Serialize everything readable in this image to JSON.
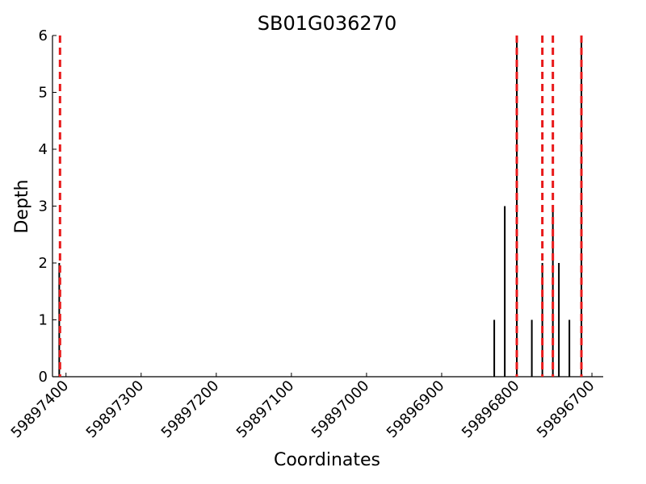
{
  "chart_data": {
    "type": "bar",
    "title": "SB01G036270",
    "xlabel": "Coordinates",
    "ylabel": "Depth",
    "x_axis_reversed": true,
    "xlim": [
      59897418,
      59896685
    ],
    "ylim": [
      0,
      6
    ],
    "xticks": [
      59897400,
      59897300,
      59897200,
      59897100,
      59897000,
      59896900,
      59896800,
      59896700
    ],
    "xtick_labels": [
      "59897400",
      "59897300",
      "59897200",
      "59897100",
      "59897000",
      "59896900",
      "59896800",
      "59896700"
    ],
    "yticks": [
      0,
      1,
      2,
      3,
      4,
      5,
      6
    ],
    "ytick_labels": [
      "0",
      "1",
      "2",
      "3",
      "4",
      "5",
      "6"
    ],
    "grid": false,
    "series": [
      {
        "color": "#000000",
        "points": [
          {
            "x": 59897409,
            "y": 2
          },
          {
            "x": 59896830,
            "y": 1
          },
          {
            "x": 59896816,
            "y": 3
          },
          {
            "x": 59896800,
            "y": 6
          },
          {
            "x": 59896780,
            "y": 1
          },
          {
            "x": 59896766,
            "y": 2
          },
          {
            "x": 59896752,
            "y": 3
          },
          {
            "x": 59896744,
            "y": 2
          },
          {
            "x": 59896730,
            "y": 1
          },
          {
            "x": 59896714,
            "y": 6
          }
        ]
      },
      {
        "color": "#e8191a",
        "style": "dashed",
        "vlines": [
          59897408,
          59896800,
          59896766,
          59896752,
          59896714
        ]
      }
    ]
  }
}
